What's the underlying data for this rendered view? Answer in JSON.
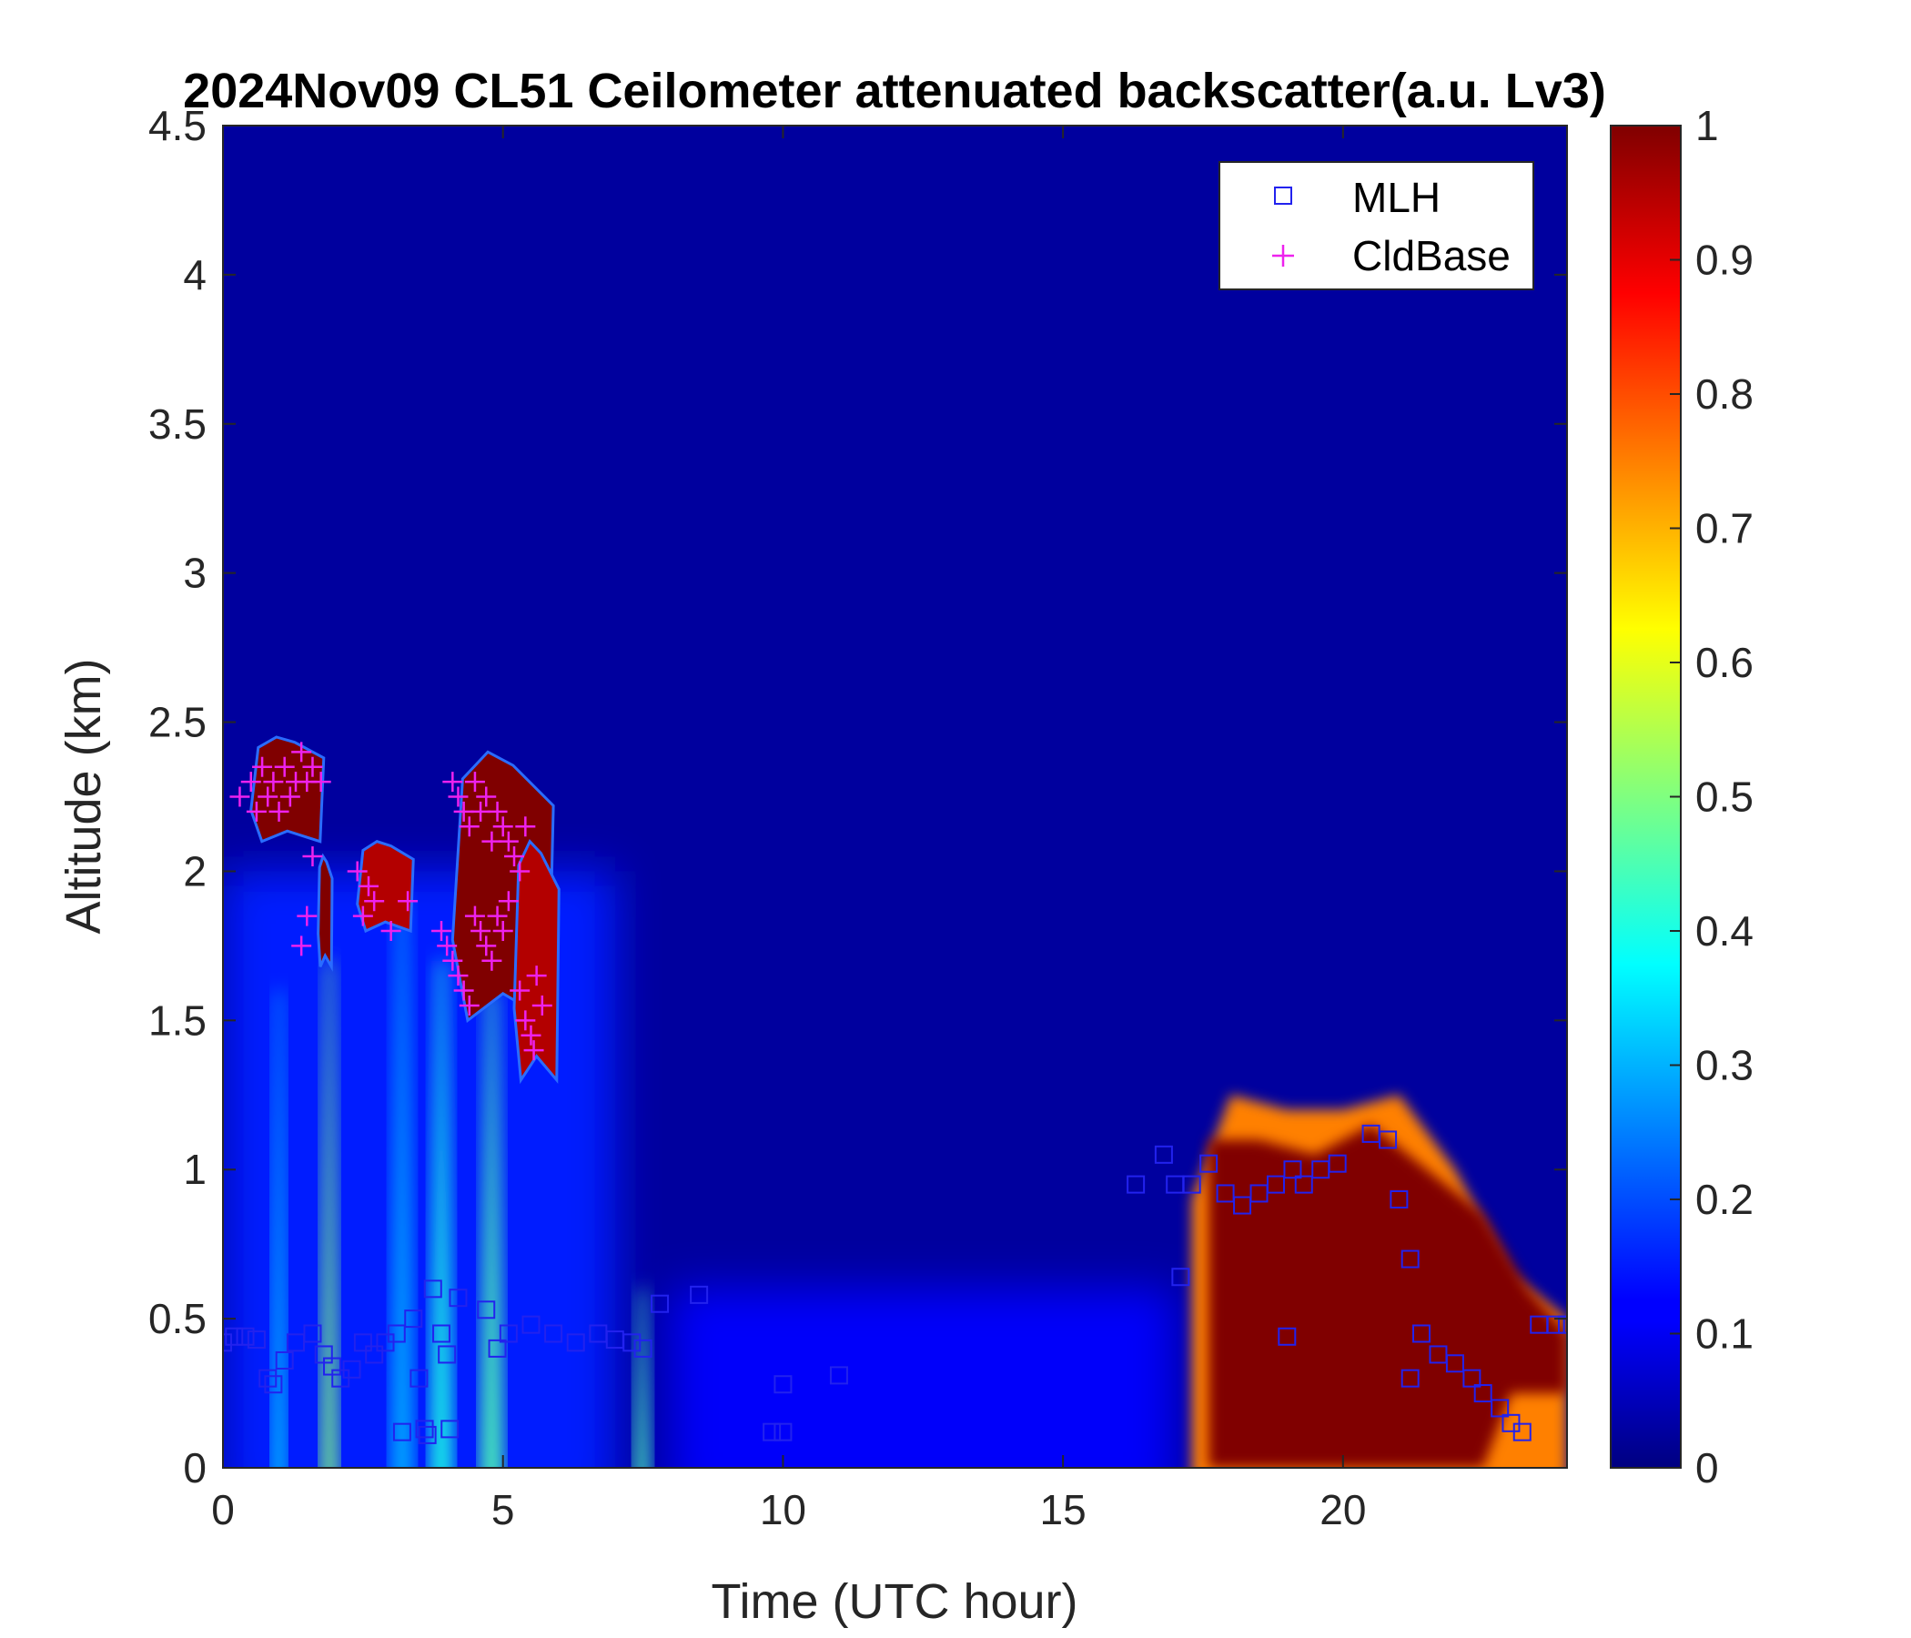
{
  "chart_data": {
    "type": "heatmap",
    "title": "2024Nov09 CL51 Ceilometer attenuated backscatter(a.u. Lv3)",
    "xlabel": "Time (UTC hour)",
    "ylabel": "Altitude (km)",
    "xlim": [
      0,
      24
    ],
    "ylim": [
      0,
      4.5
    ],
    "x_ticks": [
      0,
      5,
      10,
      15,
      20
    ],
    "x_tick_labels": [
      "0",
      "5",
      "10",
      "15",
      "20"
    ],
    "y_ticks": [
      0,
      0.5,
      1,
      1.5,
      2,
      2.5,
      3,
      3.5,
      4,
      4.5
    ],
    "y_tick_labels": [
      "0",
      "0.5",
      "1",
      "1.5",
      "2",
      "2.5",
      "3",
      "3.5",
      "4",
      "4.5"
    ],
    "colorbar": {
      "colormap": "jet",
      "range": [
        0,
        1
      ],
      "ticks": [
        0,
        0.1,
        0.2,
        0.3,
        0.4,
        0.5,
        0.6,
        0.7,
        0.8,
        0.9,
        1
      ],
      "tick_labels": [
        "0",
        "0.1",
        "0.2",
        "0.3",
        "0.4",
        "0.5",
        "0.6",
        "0.7",
        "0.8",
        "0.9",
        "1"
      ]
    },
    "background_value": 0.03,
    "features": [
      {
        "kind": "boundary_layer_region",
        "t_start": 0,
        "t_end": 7,
        "alt_top": 2.0,
        "value": 0.15
      },
      {
        "kind": "plume",
        "t_center": 1.0,
        "width": 0.12,
        "alt_top": 1.6,
        "value": 0.35
      },
      {
        "kind": "plume",
        "t_center": 1.9,
        "width": 0.15,
        "alt_top": 1.7,
        "value": 0.5
      },
      {
        "kind": "plume",
        "t_center": 3.2,
        "width": 0.2,
        "alt_top": 1.9,
        "value": 0.3
      },
      {
        "kind": "plume",
        "t_center": 3.9,
        "width": 0.2,
        "alt_top": 1.7,
        "value": 0.4
      },
      {
        "kind": "plume",
        "t_center": 4.8,
        "width": 0.2,
        "alt_top": 1.6,
        "value": 0.45
      },
      {
        "kind": "plume",
        "t_center": 7.5,
        "width": 0.15,
        "alt_top": 0.6,
        "value": 0.45
      },
      {
        "kind": "surface_haze",
        "t_start": 8,
        "t_end": 17,
        "alt_top": 0.6,
        "value": 0.12
      },
      {
        "kind": "aerosol_layer_edge",
        "t_start": 17.2,
        "t_end": 24,
        "alt_top": [
          [
            17.3,
            0.9
          ],
          [
            18.0,
            1.25
          ],
          [
            19.0,
            1.2
          ],
          [
            20.0,
            1.2
          ],
          [
            21.0,
            1.25
          ],
          [
            22.0,
            1.0
          ],
          [
            23.0,
            0.65
          ],
          [
            24.0,
            0.5
          ]
        ],
        "value": 0.75
      },
      {
        "kind": "aerosol_layer_core",
        "t_start": 17.6,
        "t_end": 24,
        "alt_bottom": [
          [
            17.6,
            0
          ],
          [
            22.5,
            0
          ],
          [
            23.0,
            0.25
          ],
          [
            24.0,
            0.25
          ]
        ],
        "alt_top": [
          [
            17.6,
            1.1
          ],
          [
            18.5,
            1.1
          ],
          [
            19.5,
            1.05
          ],
          [
            20.5,
            1.15
          ],
          [
            21.5,
            1.0
          ],
          [
            22.5,
            0.85
          ],
          [
            23.3,
            0.6
          ],
          [
            24.0,
            0.45
          ]
        ],
        "value": 1.0
      },
      {
        "kind": "cloud",
        "t_start": 0.5,
        "t_end": 1.8,
        "alt_bottom": 2.1,
        "alt_top": 2.45,
        "value": 1.0
      },
      {
        "kind": "cloud",
        "t_start": 1.7,
        "t_end": 1.95,
        "alt_bottom": 1.68,
        "alt_top": 2.05,
        "value": 1.0
      },
      {
        "kind": "cloud",
        "t_start": 2.4,
        "t_end": 3.4,
        "alt_bottom": 1.8,
        "alt_top": 2.1,
        "value": 0.95
      },
      {
        "kind": "cloud",
        "t_start": 4.1,
        "t_end": 5.9,
        "alt_bottom": 1.5,
        "alt_top": 2.4,
        "value": 1.0
      },
      {
        "kind": "cloud",
        "t_start": 5.2,
        "t_end": 6.0,
        "alt_bottom": 1.3,
        "alt_top": 2.1,
        "value": 0.95
      }
    ],
    "series": [
      {
        "name": "MLH",
        "marker": "square",
        "color": "#2222ee",
        "points": [
          [
            0.0,
            0.42
          ],
          [
            0.2,
            0.44
          ],
          [
            0.4,
            0.44
          ],
          [
            0.6,
            0.43
          ],
          [
            0.8,
            0.3
          ],
          [
            0.9,
            0.28
          ],
          [
            1.1,
            0.36
          ],
          [
            1.3,
            0.42
          ],
          [
            1.6,
            0.45
          ],
          [
            1.8,
            0.38
          ],
          [
            1.95,
            0.34
          ],
          [
            2.1,
            0.3
          ],
          [
            2.3,
            0.33
          ],
          [
            2.5,
            0.42
          ],
          [
            2.7,
            0.38
          ],
          [
            2.9,
            0.42
          ],
          [
            3.1,
            0.45
          ],
          [
            3.2,
            0.12
          ],
          [
            3.4,
            0.5
          ],
          [
            3.5,
            0.3
          ],
          [
            3.6,
            0.13
          ],
          [
            3.65,
            0.11
          ],
          [
            3.75,
            0.6
          ],
          [
            3.9,
            0.45
          ],
          [
            4.0,
            0.38
          ],
          [
            4.05,
            0.13
          ],
          [
            4.2,
            0.57
          ],
          [
            4.7,
            0.53
          ],
          [
            4.9,
            0.4
          ],
          [
            5.1,
            0.45
          ],
          [
            5.5,
            0.48
          ],
          [
            5.9,
            0.45
          ],
          [
            6.3,
            0.42
          ],
          [
            6.7,
            0.45
          ],
          [
            7.0,
            0.43
          ],
          [
            7.3,
            0.42
          ],
          [
            7.5,
            0.4
          ],
          [
            7.8,
            0.55
          ],
          [
            8.5,
            0.58
          ],
          [
            9.8,
            0.12
          ],
          [
            10.0,
            0.28
          ],
          [
            10.0,
            0.12
          ],
          [
            11.0,
            0.31
          ],
          [
            16.3,
            0.95
          ],
          [
            16.8,
            1.05
          ],
          [
            17.0,
            0.95
          ],
          [
            17.1,
            0.64
          ],
          [
            17.3,
            0.95
          ],
          [
            17.6,
            1.02
          ],
          [
            17.9,
            0.92
          ],
          [
            18.2,
            0.88
          ],
          [
            18.5,
            0.92
          ],
          [
            18.8,
            0.95
          ],
          [
            19.0,
            0.44
          ],
          [
            19.1,
            1.0
          ],
          [
            19.3,
            0.95
          ],
          [
            19.6,
            1.0
          ],
          [
            19.9,
            1.02
          ],
          [
            20.5,
            1.12
          ],
          [
            20.8,
            1.1
          ],
          [
            21.0,
            0.9
          ],
          [
            21.2,
            0.7
          ],
          [
            21.2,
            0.3
          ],
          [
            21.4,
            0.45
          ],
          [
            21.7,
            0.38
          ],
          [
            22.0,
            0.35
          ],
          [
            22.3,
            0.3
          ],
          [
            22.5,
            0.25
          ],
          [
            22.8,
            0.2
          ],
          [
            23.0,
            0.15
          ],
          [
            23.2,
            0.12
          ],
          [
            23.5,
            0.48
          ],
          [
            23.8,
            0.48
          ],
          [
            24.0,
            0.48
          ]
        ]
      },
      {
        "name": "CldBase",
        "marker": "plus",
        "color": "#ee22ee",
        "points": [
          [
            0.3,
            2.25
          ],
          [
            0.5,
            2.3
          ],
          [
            0.6,
            2.2
          ],
          [
            0.7,
            2.35
          ],
          [
            0.8,
            2.25
          ],
          [
            0.9,
            2.3
          ],
          [
            1.0,
            2.2
          ],
          [
            1.1,
            2.35
          ],
          [
            1.2,
            2.25
          ],
          [
            1.3,
            2.3
          ],
          [
            1.4,
            2.4
          ],
          [
            1.5,
            2.3
          ],
          [
            1.6,
            2.35
          ],
          [
            1.75,
            2.3
          ],
          [
            1.6,
            2.05
          ],
          [
            1.4,
            1.75
          ],
          [
            1.5,
            1.85
          ],
          [
            2.4,
            2.0
          ],
          [
            2.5,
            1.85
          ],
          [
            2.6,
            1.95
          ],
          [
            2.7,
            1.9
          ],
          [
            3.0,
            1.8
          ],
          [
            3.3,
            1.9
          ],
          [
            4.1,
            2.3
          ],
          [
            4.2,
            2.25
          ],
          [
            4.3,
            2.2
          ],
          [
            4.4,
            2.15
          ],
          [
            4.5,
            2.3
          ],
          [
            4.6,
            2.2
          ],
          [
            4.7,
            2.25
          ],
          [
            4.8,
            2.1
          ],
          [
            4.9,
            2.2
          ],
          [
            5.0,
            2.15
          ],
          [
            5.1,
            2.1
          ],
          [
            5.2,
            2.05
          ],
          [
            5.3,
            2.0
          ],
          [
            5.4,
            2.15
          ],
          [
            3.9,
            1.8
          ],
          [
            4.0,
            1.75
          ],
          [
            4.1,
            1.7
          ],
          [
            4.2,
            1.65
          ],
          [
            4.3,
            1.6
          ],
          [
            4.4,
            1.55
          ],
          [
            4.5,
            1.85
          ],
          [
            4.6,
            1.8
          ],
          [
            4.7,
            1.75
          ],
          [
            4.8,
            1.7
          ],
          [
            4.9,
            1.85
          ],
          [
            5.0,
            1.8
          ],
          [
            5.3,
            1.6
          ],
          [
            5.4,
            1.5
          ],
          [
            5.5,
            1.45
          ],
          [
            5.55,
            1.4
          ],
          [
            5.6,
            1.65
          ],
          [
            5.7,
            1.55
          ],
          [
            5.1,
            1.9
          ]
        ]
      }
    ],
    "legend": {
      "position": "top-right",
      "entries": [
        "MLH",
        "CldBase"
      ]
    }
  }
}
